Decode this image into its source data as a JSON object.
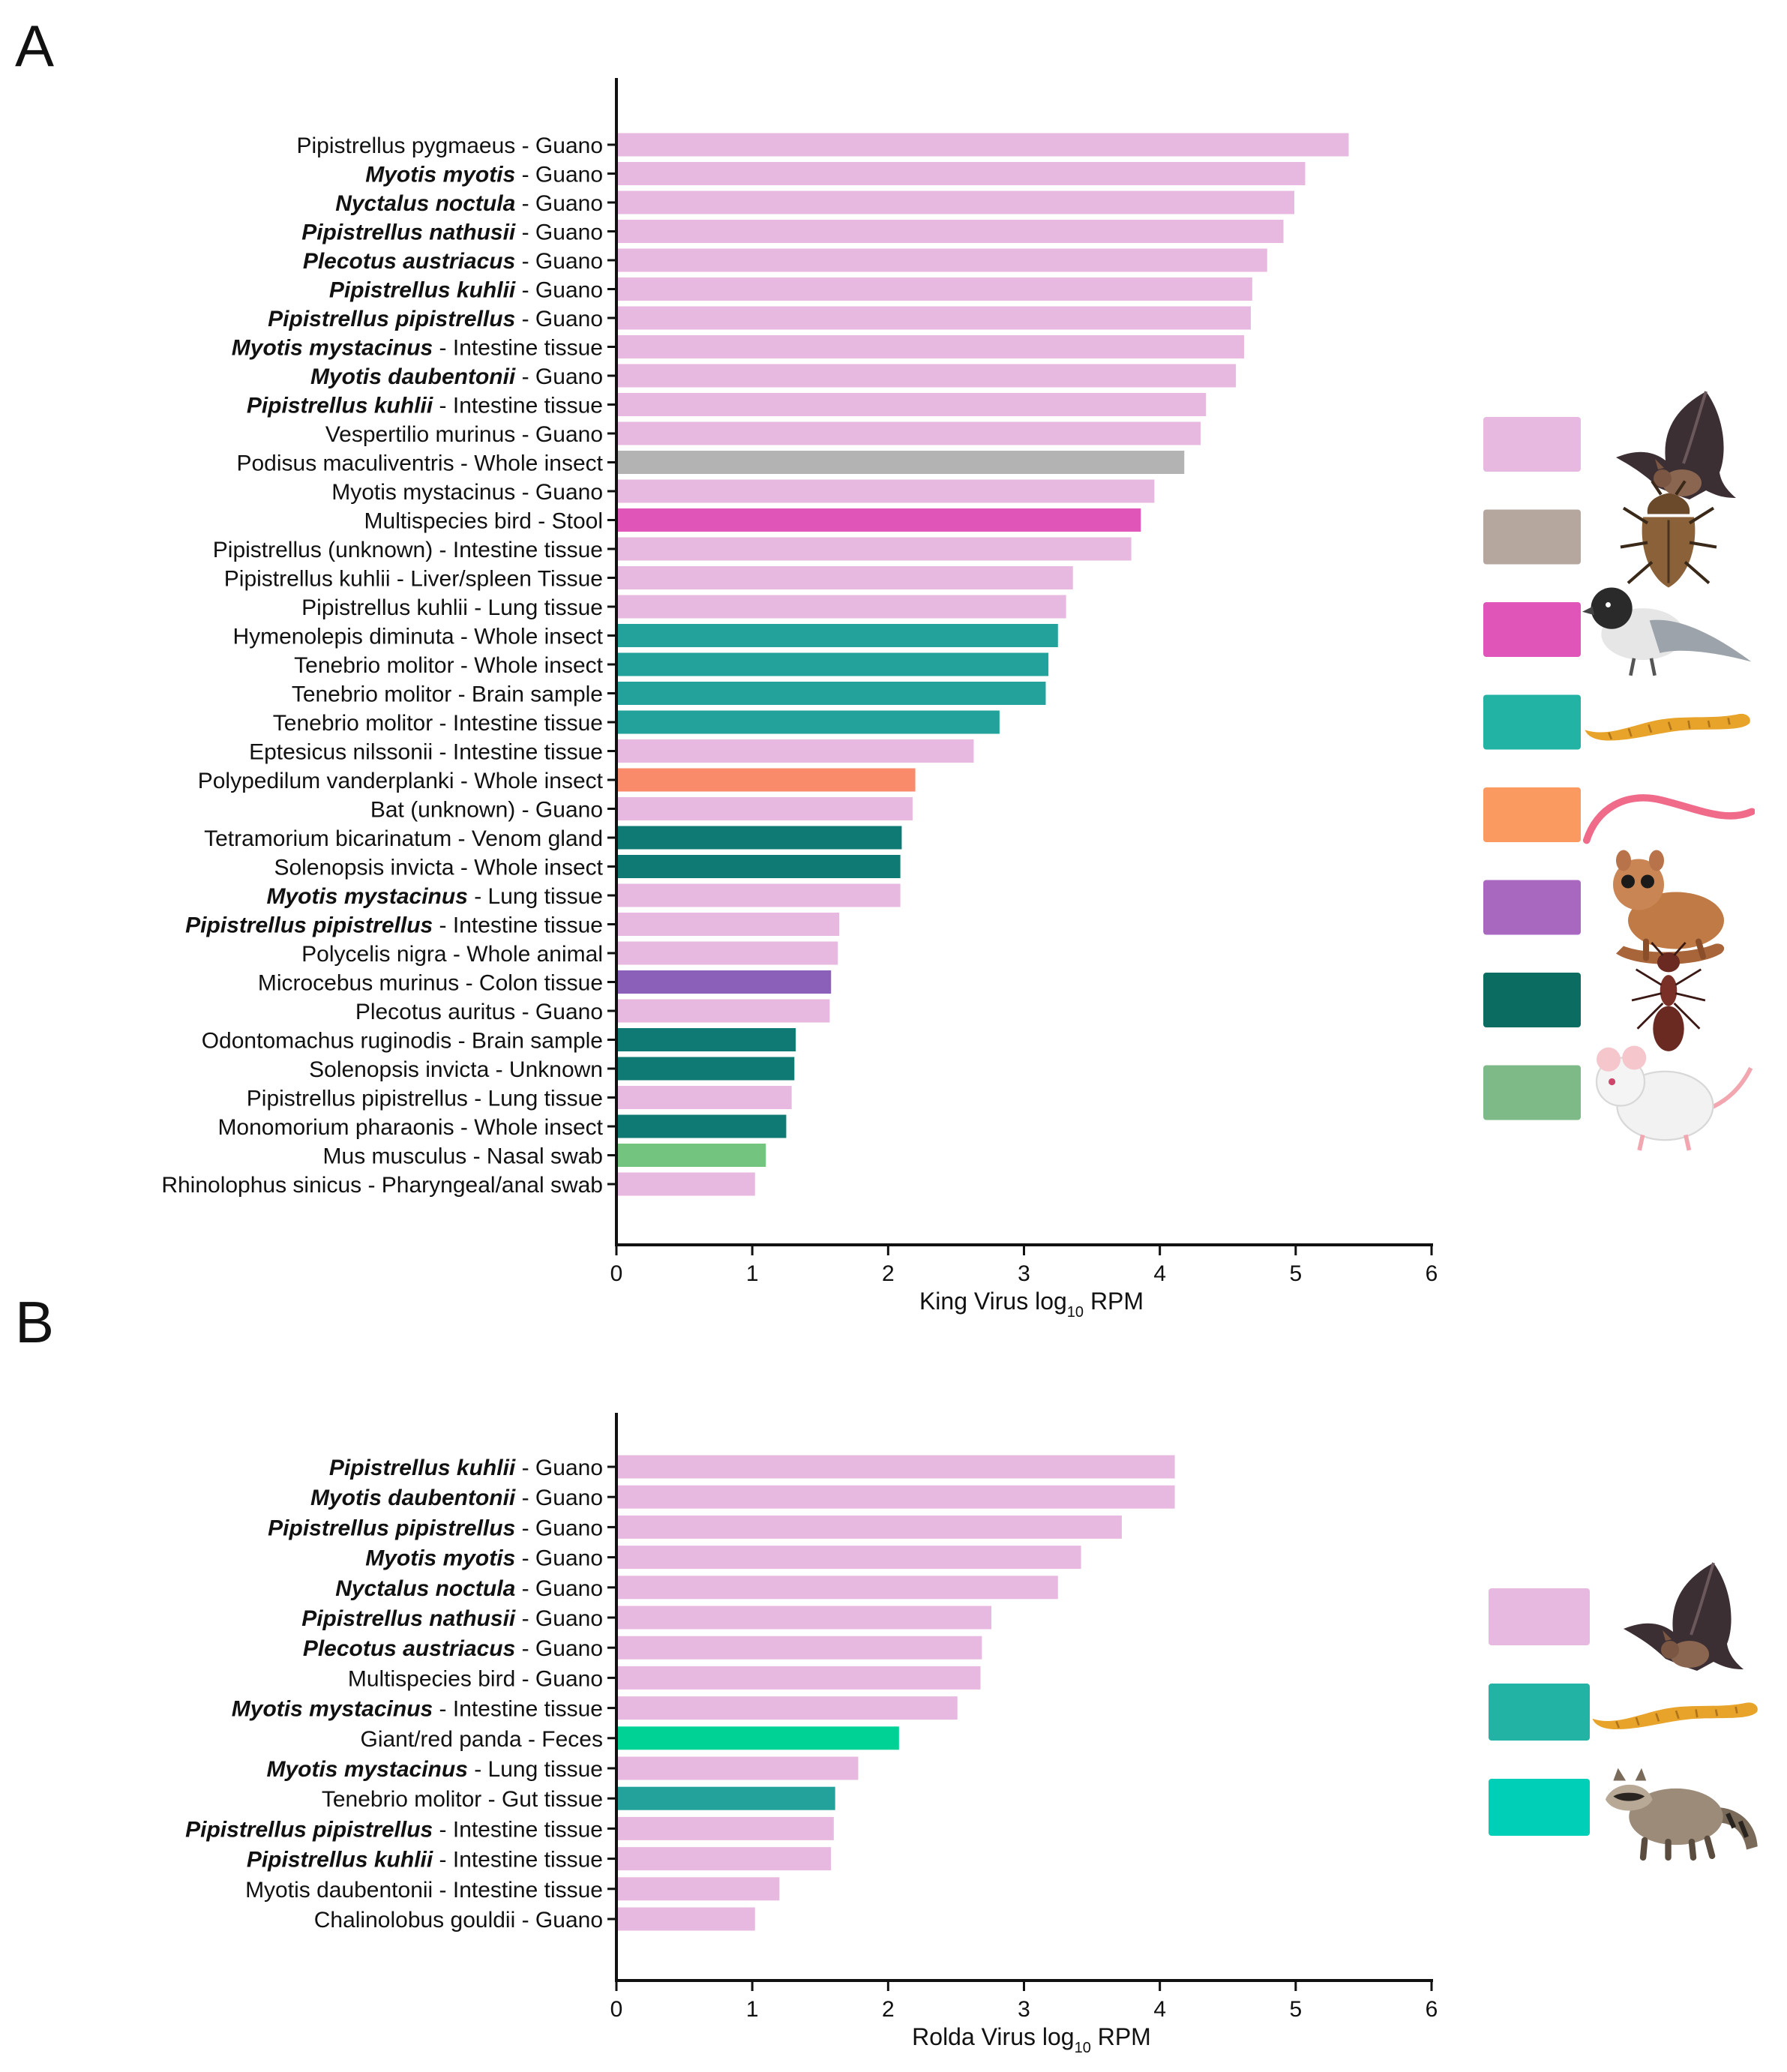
{
  "chart_data": [
    {
      "type": "bar",
      "orientation": "horizontal",
      "panel": "A",
      "xlabel": "King Virus log",
      "xlabel_sub": "10",
      "xlabel_suffix": " RPM",
      "xlim": [
        0,
        6
      ],
      "xticks": [
        "0",
        "1",
        "2",
        "3",
        "4",
        "5",
        "6"
      ],
      "bars": [
        {
          "name": "Pipistrellus pygmaeus",
          "sample": " - Guano",
          "italic": false,
          "value": 5.39,
          "color": "#e8b9e0"
        },
        {
          "name": "Myotis myotis",
          "sample": " - Guano",
          "italic": true,
          "value": 5.07,
          "color": "#e8b9e0"
        },
        {
          "name": "Nyctalus noctula",
          "sample": " - Guano",
          "italic": true,
          "value": 4.99,
          "color": "#e8b9e0"
        },
        {
          "name": "Pipistrellus nathusii",
          "sample": " - Guano",
          "italic": true,
          "value": 4.91,
          "color": "#e8b9e0"
        },
        {
          "name": "Plecotus austriacus",
          "sample": " - Guano",
          "italic": true,
          "value": 4.79,
          "color": "#e8b9e0"
        },
        {
          "name": "Pipistrellus kuhlii",
          "sample": " - Guano",
          "italic": true,
          "value": 4.68,
          "color": "#e8b9e0"
        },
        {
          "name": "Pipistrellus pipistrellus",
          "sample": " - Guano",
          "italic": true,
          "value": 4.67,
          "color": "#e8b9e0"
        },
        {
          "name": "Myotis mystacinus",
          "sample": " - Intestine tissue",
          "italic": true,
          "value": 4.62,
          "color": "#e8b9e0"
        },
        {
          "name": "Myotis daubentonii",
          "sample": " - Guano",
          "italic": true,
          "value": 4.56,
          "color": "#e8b9e0"
        },
        {
          "name": "Pipistrellus kuhlii",
          "sample": " - Intestine tissue",
          "italic": true,
          "value": 4.34,
          "color": "#e8b9e0"
        },
        {
          "name": "Vespertilio murinus",
          "sample": " - Guano",
          "italic": false,
          "value": 4.3,
          "color": "#e8b9e0"
        },
        {
          "name": "Podisus maculiventris",
          "sample": " - Whole insect",
          "italic": false,
          "value": 4.18,
          "color": "#b3b3b3"
        },
        {
          "name": "Myotis mystacinus",
          "sample": " - Guano",
          "italic": false,
          "value": 3.96,
          "color": "#e8b9e0"
        },
        {
          "name": "Multispecies bird",
          "sample": " - Stool",
          "italic": false,
          "value": 3.86,
          "color": "#e055b8"
        },
        {
          "name": "Pipistrellus (unknown)",
          "sample": " - Intestine tissue",
          "italic": false,
          "value": 3.79,
          "color": "#e8b9e0"
        },
        {
          "name": "Pipistrellus kuhlii",
          "sample": " - Liver/spleen Tissue",
          "italic": false,
          "value": 3.36,
          "color": "#e8b9e0"
        },
        {
          "name": "Pipistrellus kuhlii",
          "sample": " - Lung tissue",
          "italic": false,
          "value": 3.31,
          "color": "#e8b9e0"
        },
        {
          "name": "Hymenolepis diminuta",
          "sample": " - Whole insect",
          "italic": false,
          "value": 3.25,
          "color": "#22a29a"
        },
        {
          "name": "Tenebrio molitor",
          "sample": " - Whole insect",
          "italic": false,
          "value": 3.18,
          "color": "#22a29a"
        },
        {
          "name": "Tenebrio molitor",
          "sample": " - Brain sample",
          "italic": false,
          "value": 3.16,
          "color": "#22a29a"
        },
        {
          "name": "Tenebrio molitor",
          "sample": " - Intestine tissue",
          "italic": false,
          "value": 2.82,
          "color": "#22a29a"
        },
        {
          "name": "Eptesicus nilssonii",
          "sample": " - Intestine tissue",
          "italic": false,
          "value": 2.63,
          "color": "#e8b9e0"
        },
        {
          "name": "Polypedilum vanderplanki",
          "sample": " - Whole insect",
          "italic": false,
          "value": 2.2,
          "color": "#f98a6a"
        },
        {
          "name": "Bat  (unknown)",
          "sample": " - Guano",
          "italic": false,
          "value": 2.18,
          "color": "#e8b9e0"
        },
        {
          "name": "Tetramorium bicarinatum",
          "sample": " - Venom gland",
          "italic": false,
          "value": 2.1,
          "color": "#0f7a73"
        },
        {
          "name": "Solenopsis invicta",
          "sample": " - Whole insect",
          "italic": false,
          "value": 2.09,
          "color": "#0f7a73"
        },
        {
          "name": "Myotis mystacinus",
          "sample": " - Lung tissue",
          "italic": true,
          "value": 2.09,
          "color": "#e8b9e0"
        },
        {
          "name": "Pipistrellus pipistrellus",
          "sample": " - Intestine tissue",
          "italic": true,
          "value": 1.64,
          "color": "#e8b9e0"
        },
        {
          "name": "Polycelis nigra",
          "sample": " - Whole animal",
          "italic": false,
          "value": 1.63,
          "color": "#e8b9e0"
        },
        {
          "name": "Microcebus murinus",
          "sample": " - Colon tissue",
          "italic": false,
          "value": 1.58,
          "color": "#8b60b8"
        },
        {
          "name": "Plecotus auritus",
          "sample": " - Guano",
          "italic": false,
          "value": 1.57,
          "color": "#e8b9e0"
        },
        {
          "name": "Odontomachus ruginodis",
          "sample": " - Brain sample",
          "italic": false,
          "value": 1.32,
          "color": "#0f7a73"
        },
        {
          "name": "Solenopsis invicta",
          "sample": " - Unknown",
          "italic": false,
          "value": 1.31,
          "color": "#0f7a73"
        },
        {
          "name": "Pipistrellus pipistrellus",
          "sample": " - Lung tissue",
          "italic": false,
          "value": 1.29,
          "color": "#e8b9e0"
        },
        {
          "name": "Monomorium pharaonis",
          "sample": " - Whole insect",
          "italic": false,
          "value": 1.25,
          "color": "#0f7a73"
        },
        {
          "name": "Mus musculus",
          "sample": " - Nasal swab",
          "italic": false,
          "value": 1.1,
          "color": "#72c47e"
        },
        {
          "name": "Rhinolophus sinicus",
          "sample": " - Pharyngeal/anal swab",
          "italic": false,
          "value": 1.02,
          "color": "#e8b9e0"
        }
      ],
      "legend": [
        {
          "color": "#e8b9e0",
          "icon": "bat-icon"
        },
        {
          "color": "#b5a79d",
          "icon": "stink-bug-icon"
        },
        {
          "color": "#e055b8",
          "icon": "bird-icon"
        },
        {
          "color": "#22b3a4",
          "icon": "mealworm-icon"
        },
        {
          "color": "#fb9a60",
          "icon": "worm-icon"
        },
        {
          "color": "#a868c0",
          "icon": "mouse-lemur-icon"
        },
        {
          "color": "#0b6c62",
          "icon": "ant-icon"
        },
        {
          "color": "#7dba88",
          "icon": "mouse-icon"
        }
      ]
    },
    {
      "type": "bar",
      "orientation": "horizontal",
      "panel": "B",
      "xlabel": "Rolda Virus log",
      "xlabel_sub": "10",
      "xlabel_suffix": " RPM",
      "xlim": [
        0,
        6
      ],
      "xticks": [
        "0",
        "1",
        "2",
        "3",
        "4",
        "5",
        "6"
      ],
      "bars": [
        {
          "name": "Pipistrellus kuhlii",
          "sample": " - Guano",
          "italic": true,
          "value": 4.11,
          "color": "#e8b9e0"
        },
        {
          "name": "Myotis daubentonii",
          "sample": " - Guano",
          "italic": true,
          "value": 4.11,
          "color": "#e8b9e0"
        },
        {
          "name": "Pipistrellus pipistrellus",
          "sample": " - Guano",
          "italic": true,
          "value": 3.72,
          "color": "#e8b9e0"
        },
        {
          "name": "Myotis myotis",
          "sample": " - Guano",
          "italic": true,
          "value": 3.42,
          "color": "#e8b9e0"
        },
        {
          "name": "Nyctalus noctula",
          "sample": " - Guano",
          "italic": true,
          "value": 3.25,
          "color": "#e8b9e0"
        },
        {
          "name": "Pipistrellus nathusii",
          "sample": " - Guano",
          "italic": true,
          "value": 2.76,
          "color": "#e8b9e0"
        },
        {
          "name": "Plecotus austriacus",
          "sample": " - Guano",
          "italic": true,
          "value": 2.69,
          "color": "#e8b9e0"
        },
        {
          "name": "Multispecies bird",
          "sample": " - Guano",
          "italic": false,
          "value": 2.68,
          "color": "#e8b9e0"
        },
        {
          "name": "Myotis mystacinus",
          "sample": " - Intestine tissue",
          "italic": true,
          "value": 2.51,
          "color": "#e8b9e0"
        },
        {
          "name": "Giant/red panda",
          "sample": " - Feces",
          "italic": false,
          "value": 2.08,
          "color": "#00d195"
        },
        {
          "name": "Myotis mystacinus",
          "sample": " - Lung tissue",
          "italic": true,
          "value": 1.78,
          "color": "#e8b9e0"
        },
        {
          "name": "Tenebrio molitor",
          "sample": " - Gut tissue",
          "italic": false,
          "value": 1.61,
          "color": "#22a29a"
        },
        {
          "name": "Pipistrellus pipistrellus",
          "sample": " - Intestine tissue",
          "italic": true,
          "value": 1.6,
          "color": "#e8b9e0"
        },
        {
          "name": "Pipistrellus kuhlii",
          "sample": " - Intestine tissue",
          "italic": true,
          "value": 1.58,
          "color": "#e8b9e0"
        },
        {
          "name": "Myotis daubentonii",
          "sample": " - Intestine tissue",
          "italic": false,
          "value": 1.2,
          "color": "#e8b9e0"
        },
        {
          "name": "Chalinolobus gouldii",
          "sample": " - Guano",
          "italic": false,
          "value": 1.02,
          "color": "#e8b9e0"
        }
      ],
      "legend": [
        {
          "color": "#e8b9e0",
          "icon": "bat-icon"
        },
        {
          "color": "#22b3a4",
          "icon": "mealworm-icon"
        },
        {
          "color": "#00cfb8",
          "icon": "raccoon-icon"
        }
      ]
    }
  ]
}
